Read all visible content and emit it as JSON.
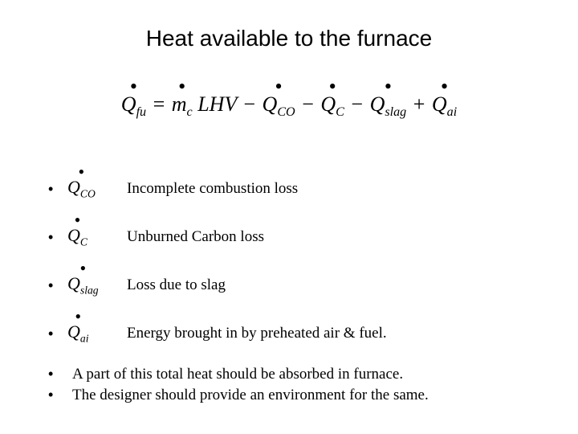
{
  "title": "Heat available to the furnace",
  "equation": {
    "lhs": {
      "base": "Q",
      "sub": "fu",
      "dot": true
    },
    "rhs": [
      {
        "op": "=",
        "base": "m",
        "sub": "c",
        "dot": true,
        "trailing": " LHV"
      },
      {
        "op": "−",
        "base": "Q",
        "sub": "CO",
        "dot": true
      },
      {
        "op": "−",
        "base": "Q",
        "sub": "C",
        "dot": true
      },
      {
        "op": "−",
        "base": "Q",
        "sub": "slag",
        "dot": true
      },
      {
        "op": "+",
        "base": "Q",
        "sub": "ai",
        "dot": true
      }
    ]
  },
  "items": [
    {
      "base": "Q",
      "sub": "CO",
      "dot": true,
      "desc": "Incomplete combustion loss"
    },
    {
      "base": "Q",
      "sub": "C",
      "dot": true,
      "desc": "Unburned Carbon loss"
    },
    {
      "base": "Q",
      "sub": "slag",
      "dot": true,
      "desc": "Loss due to slag"
    },
    {
      "base": "Q",
      "sub": "ai",
      "dot": true,
      "desc": "Energy brought in by preheated air & fuel."
    }
  ],
  "footer": [
    "A part of this total heat should be absorbed in furnace.",
    "The designer should provide an environment for the same."
  ],
  "style": {
    "bg": "#ffffff",
    "text": "#000000",
    "title_font": "Arial",
    "body_font": "Times New Roman",
    "title_size_pt": 28,
    "body_size_pt": 19,
    "eqn_size_pt": 26
  }
}
